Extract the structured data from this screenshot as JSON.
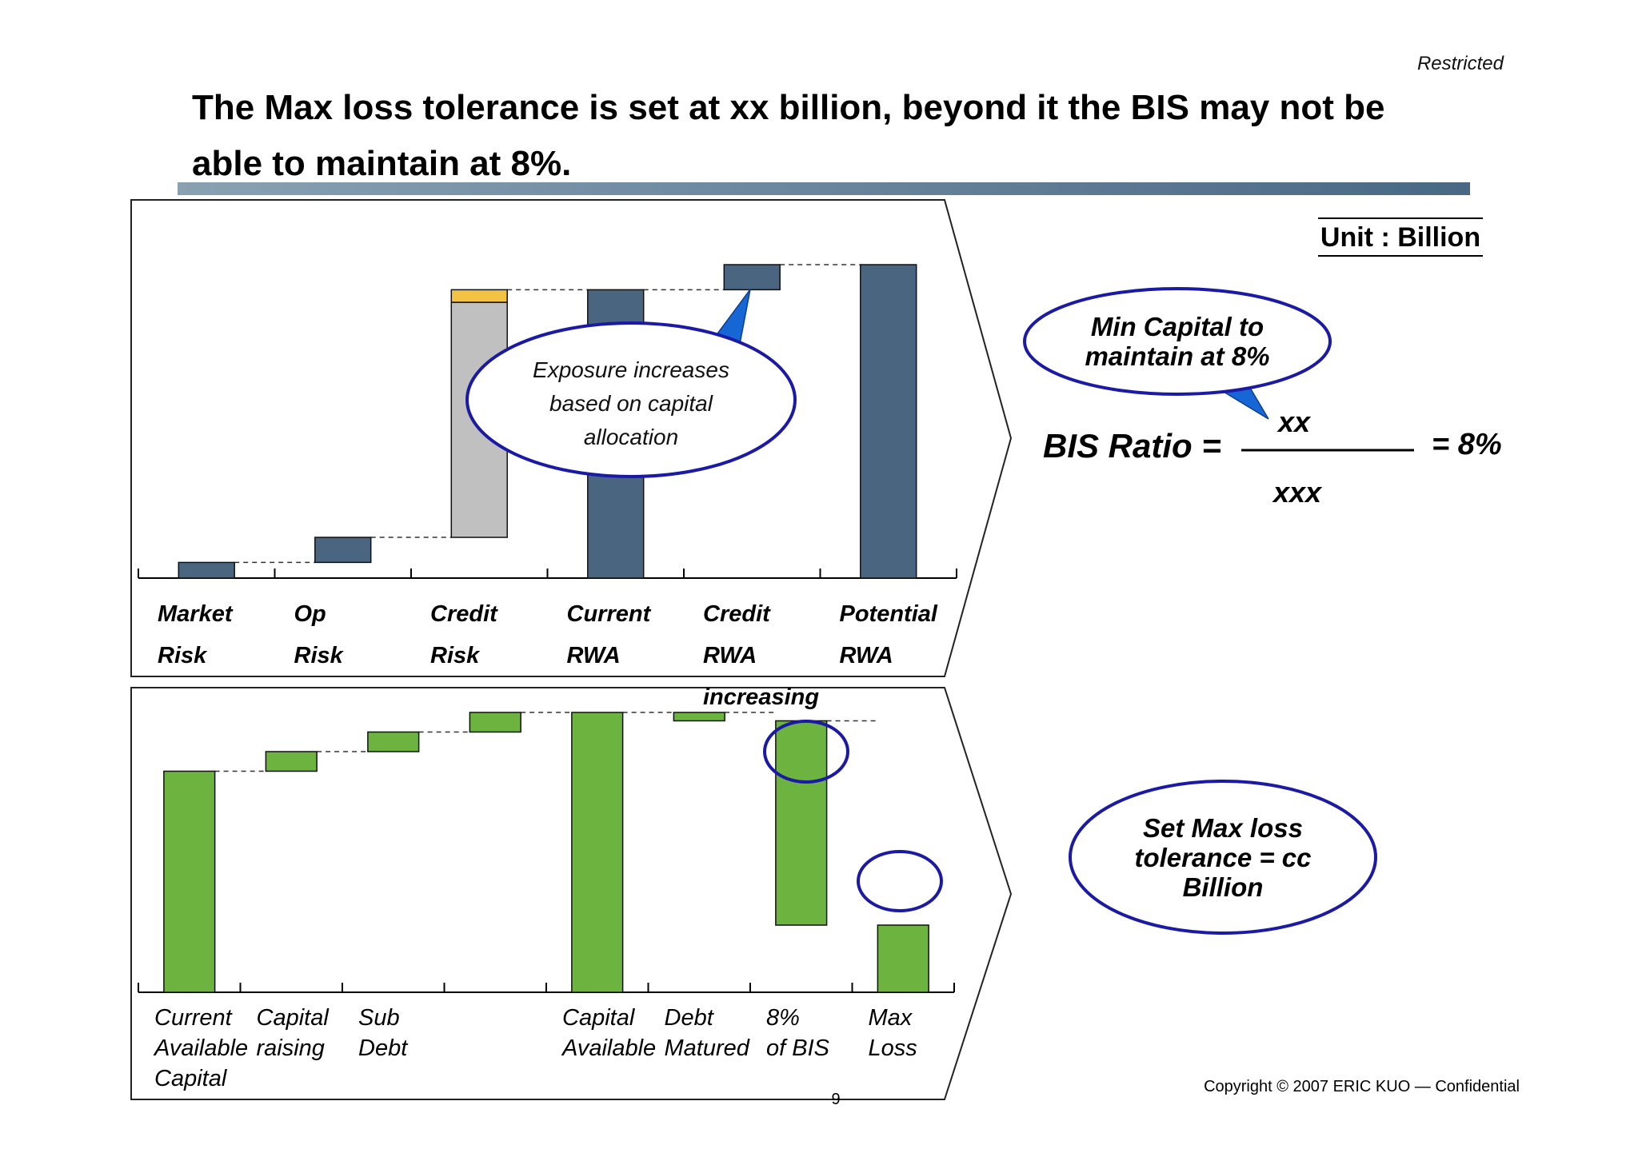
{
  "header": {
    "restricted": "Restricted",
    "title": "The Max loss tolerance is set at xx billion, beyond it the BIS may not be able to maintain at 8%.",
    "unit": "Unit : Billion"
  },
  "colors": {
    "blue_bar": "#49657f",
    "gray_bar": "#c0c0c0",
    "yellow_band": "#f4c242",
    "green_bar": "#6db33f",
    "callout_border": "#1a1aa6",
    "callout_pointer": "#1666d6"
  },
  "chart_data": [
    {
      "type": "bar",
      "subtype": "waterfall",
      "name": "rwa-waterfall",
      "categories": [
        [
          "Market",
          "Risk"
        ],
        [
          "Op",
          "Risk"
        ],
        [
          "Credit",
          "Risk"
        ],
        [
          "Current",
          "RWA"
        ],
        [
          "Credit",
          "RWA",
          "increasing"
        ],
        [
          "Potential",
          "RWA"
        ]
      ],
      "bars": [
        {
          "category": 0,
          "base": 0,
          "top": 5,
          "color": "blue"
        },
        {
          "category": 1,
          "base": 5,
          "top": 13,
          "color": "blue"
        },
        {
          "category": 2,
          "base": 13,
          "top": 88,
          "color": "gray",
          "band_top": 92,
          "band_color": "yellow"
        },
        {
          "category": 3,
          "base": 0,
          "top": 92,
          "color": "blue"
        },
        {
          "category": 4,
          "base": 92,
          "top": 100,
          "color": "blue"
        },
        {
          "category": 5,
          "base": 0,
          "top": 100,
          "color": "blue"
        }
      ],
      "ylim": [
        0,
        100
      ],
      "callout": [
        "Exposure increases",
        "based on capital",
        "allocation"
      ]
    },
    {
      "type": "bar",
      "subtype": "waterfall",
      "name": "capital-waterfall",
      "categories": [
        [
          "Current",
          "Available",
          "Capital"
        ],
        [
          "Capital",
          "raising"
        ],
        [
          "Sub",
          "Debt"
        ],
        [],
        [
          "Capital",
          "Available"
        ],
        [
          "Debt",
          "Matured"
        ],
        [
          "8%",
          "of BIS"
        ],
        [
          "Max",
          "Loss"
        ]
      ],
      "bars": [
        {
          "category": 0,
          "base": 0,
          "top": 79
        },
        {
          "category": 1,
          "base": 79,
          "top": 86
        },
        {
          "category": 2,
          "base": 86,
          "top": 93
        },
        {
          "category": 3,
          "base": 93,
          "top": 100
        },
        {
          "category": 4,
          "base": 0,
          "top": 100
        },
        {
          "category": 5,
          "base": 97,
          "top": 100
        },
        {
          "category": 6,
          "base": 24,
          "top": 97
        },
        {
          "category": 7,
          "base": 0,
          "top": 24
        }
      ],
      "ylim": [
        0,
        100
      ]
    }
  ],
  "formula": {
    "label": "BIS Ratio =",
    "numerator": "xx",
    "denominator": "xxx",
    "result": "= 8%",
    "callout": [
      "Min Capital to",
      "maintain at 8%"
    ]
  },
  "max_loss_callout": [
    "Set Max loss",
    "tolerance = cc",
    "Billion"
  ],
  "footer": {
    "copyright": "Copyright © 2007 ERIC KUO — Confidential",
    "page_number": "9"
  }
}
